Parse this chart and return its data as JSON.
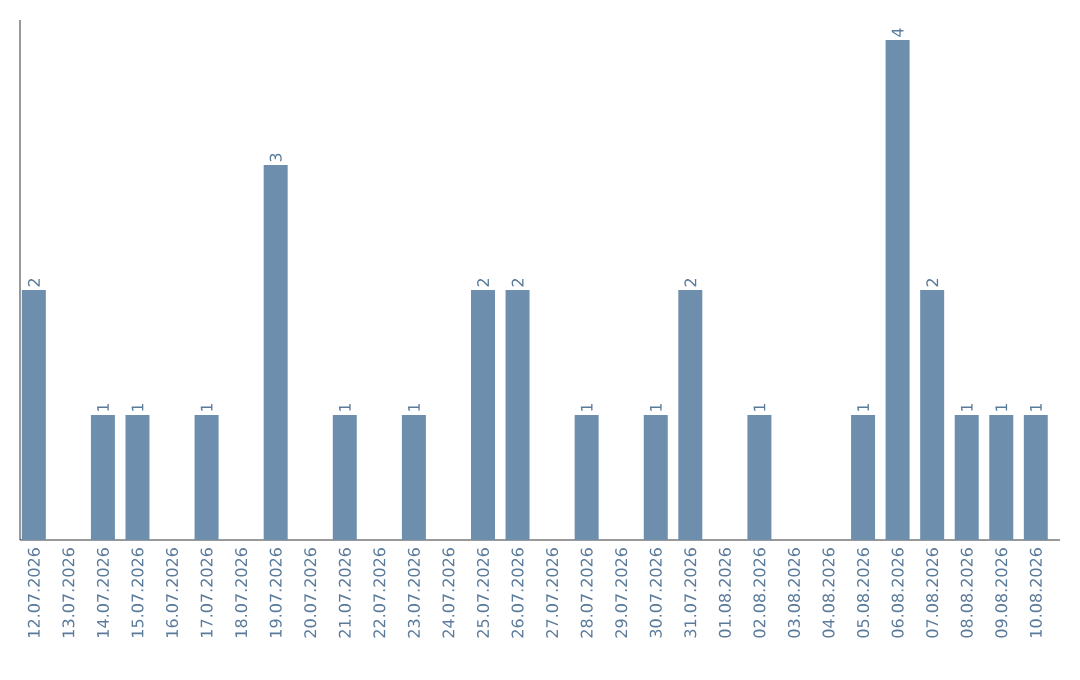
{
  "chart_data": {
    "type": "bar",
    "categories": [
      "12.07.2026",
      "13.07.2026",
      "14.07.2026",
      "15.07.2026",
      "16.07.2026",
      "17.07.2026",
      "18.07.2026",
      "19.07.2026",
      "20.07.2026",
      "21.07.2026",
      "22.07.2026",
      "23.07.2026",
      "24.07.2026",
      "25.07.2026",
      "26.07.2026",
      "27.07.2026",
      "28.07.2026",
      "29.07.2026",
      "30.07.2026",
      "31.07.2026",
      "01.08.2026",
      "02.08.2026",
      "03.08.2026",
      "04.08.2026",
      "05.08.2026",
      "06.08.2026",
      "07.08.2026",
      "08.08.2026",
      "09.08.2026",
      "10.08.2026"
    ],
    "values": [
      2,
      0,
      1,
      1,
      0,
      1,
      0,
      3,
      0,
      1,
      0,
      1,
      0,
      2,
      2,
      0,
      1,
      0,
      1,
      2,
      0,
      1,
      0,
      0,
      1,
      4,
      2,
      1,
      1,
      1
    ],
    "value_labels": [
      "2",
      null,
      "1",
      "1",
      null,
      "1",
      null,
      "3",
      null,
      "1",
      null,
      "1",
      null,
      "2",
      "2",
      null,
      "1",
      null,
      "1",
      "2",
      null,
      "1",
      null,
      null,
      "1",
      "4",
      "2",
      "1",
      "1",
      "1"
    ],
    "color": "#6d8fad",
    "tick_labels": "x"
  }
}
